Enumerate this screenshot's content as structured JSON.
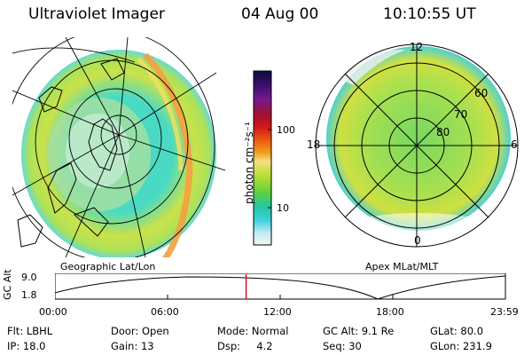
{
  "header": {
    "title": "Ultraviolet Imager",
    "date": "04 Aug 00",
    "time": "10:10:55 UT"
  },
  "panels": {
    "left_label": "Geographic Lat/Lon",
    "right_label": "Apex MLat/MLT"
  },
  "colorbar": {
    "label": "photon cm⁻²s⁻¹",
    "ticks": [
      "100",
      "10"
    ],
    "colors": [
      "#0d0d3a",
      "#3a0f6e",
      "#7a1a8a",
      "#a01030",
      "#d01818",
      "#ee5a10",
      "#f0a020",
      "#f4e080",
      "#b8e030",
      "#60d040",
      "#20c8a0",
      "#40d0e0",
      "#c0ecf4",
      "#f4f4f4"
    ]
  },
  "polar": {
    "mlt_labels": [
      "12",
      "18",
      "6",
      "0"
    ],
    "mlat_labels": [
      "60",
      "70",
      "80"
    ]
  },
  "timeline": {
    "ylabel": "GC Alt",
    "yticks": [
      "9.0",
      "1.8"
    ],
    "xticks": [
      "00:00",
      "06:00",
      "12:00",
      "18:00",
      "23:59"
    ],
    "current_fraction": 0.4243,
    "marker_color": "#e00000"
  },
  "info": {
    "row1": [
      "Flt: LBHL",
      "Door: Open",
      "Mode: Normal",
      "GC Alt: 9.1 Re",
      "GLat: 80.0"
    ],
    "row2": [
      "IP: 18.0",
      "Gain: 13",
      "Dsp:     4.2",
      "Seq: 30",
      "GLon: 231.9"
    ]
  }
}
